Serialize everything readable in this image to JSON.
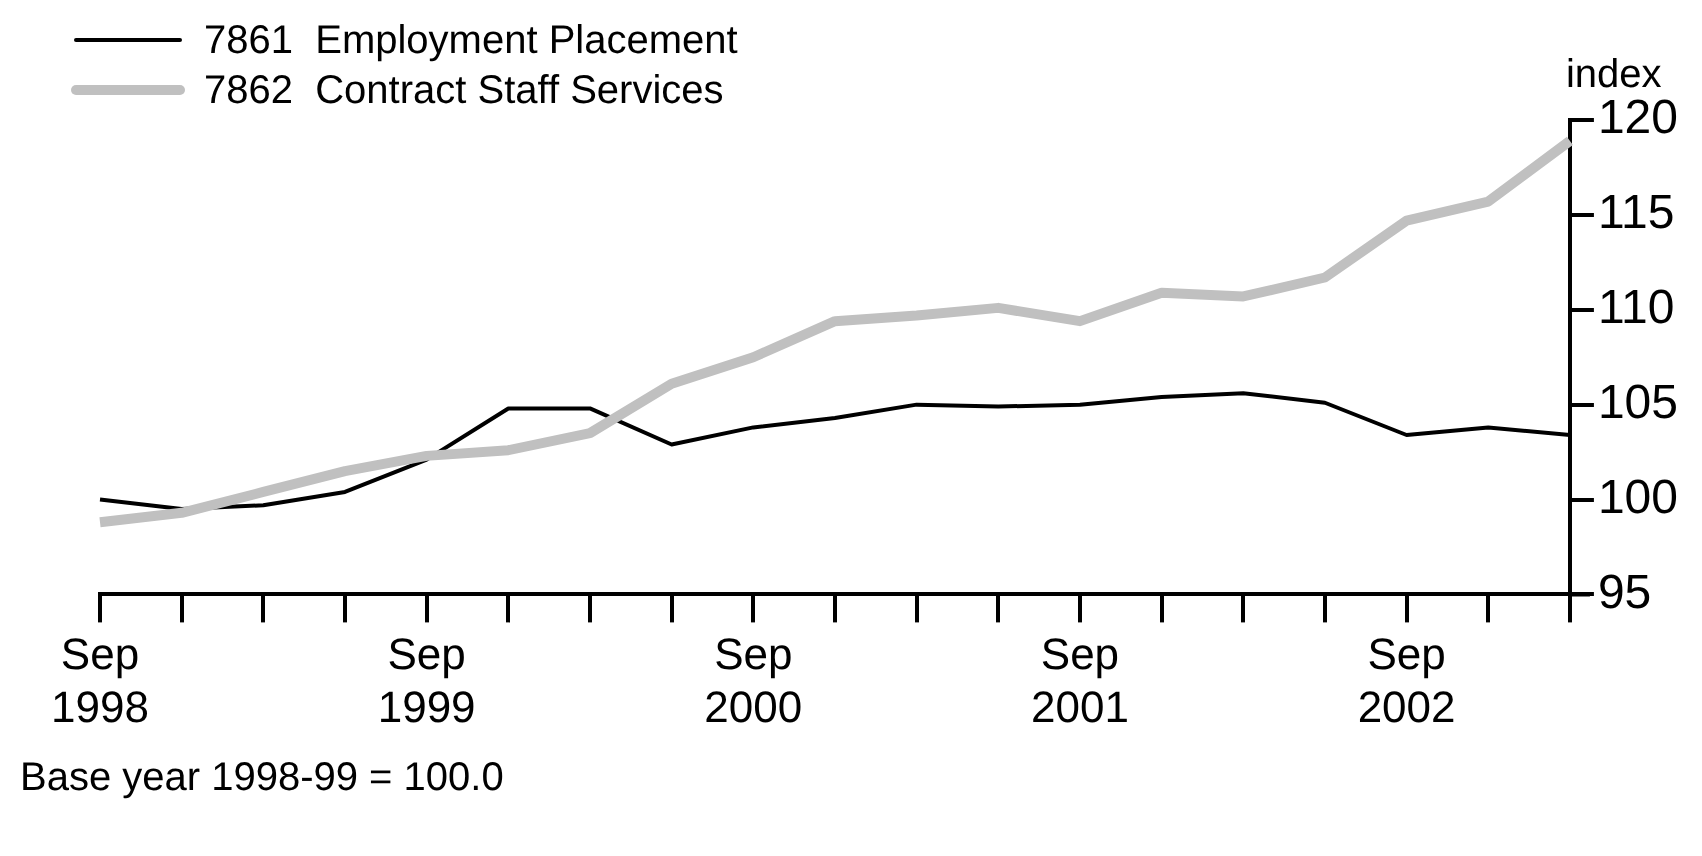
{
  "chart_data": {
    "type": "line",
    "ylabel": "index",
    "annotations": [
      "Base year 1998-99 = 100.0"
    ],
    "categories": [
      "Sep 1998",
      null,
      null,
      null,
      "Sep 1999",
      null,
      null,
      null,
      "Sep 2000",
      null,
      null,
      null,
      "Sep 2001",
      null,
      null,
      null,
      "Sep 2002",
      null,
      null
    ],
    "series": [
      {
        "name": "7861  Employment Placement",
        "color": "#000000",
        "values": [
          100.0,
          99.5,
          99.7,
          100.4,
          102.1,
          104.8,
          104.8,
          102.9,
          103.8,
          104.3,
          105.0,
          104.9,
          105.0,
          105.4,
          105.6,
          105.1,
          103.4,
          103.8,
          103.4
        ]
      },
      {
        "name": "7862  Contract Staff Services",
        "color": "#c0c0c0",
        "values": [
          98.8,
          99.3,
          100.4,
          101.5,
          102.3,
          102.6,
          103.5,
          106.1,
          107.5,
          109.4,
          109.7,
          110.1,
          109.4,
          110.9,
          110.7,
          111.7,
          114.7,
          115.7,
          118.9
        ]
      }
    ],
    "ylim": [
      95,
      120
    ],
    "yticks": [
      95,
      100,
      105,
      110,
      115,
      120
    ],
    "grid": false,
    "legend": "top left",
    "marker": "none",
    "line_style": "solid"
  }
}
